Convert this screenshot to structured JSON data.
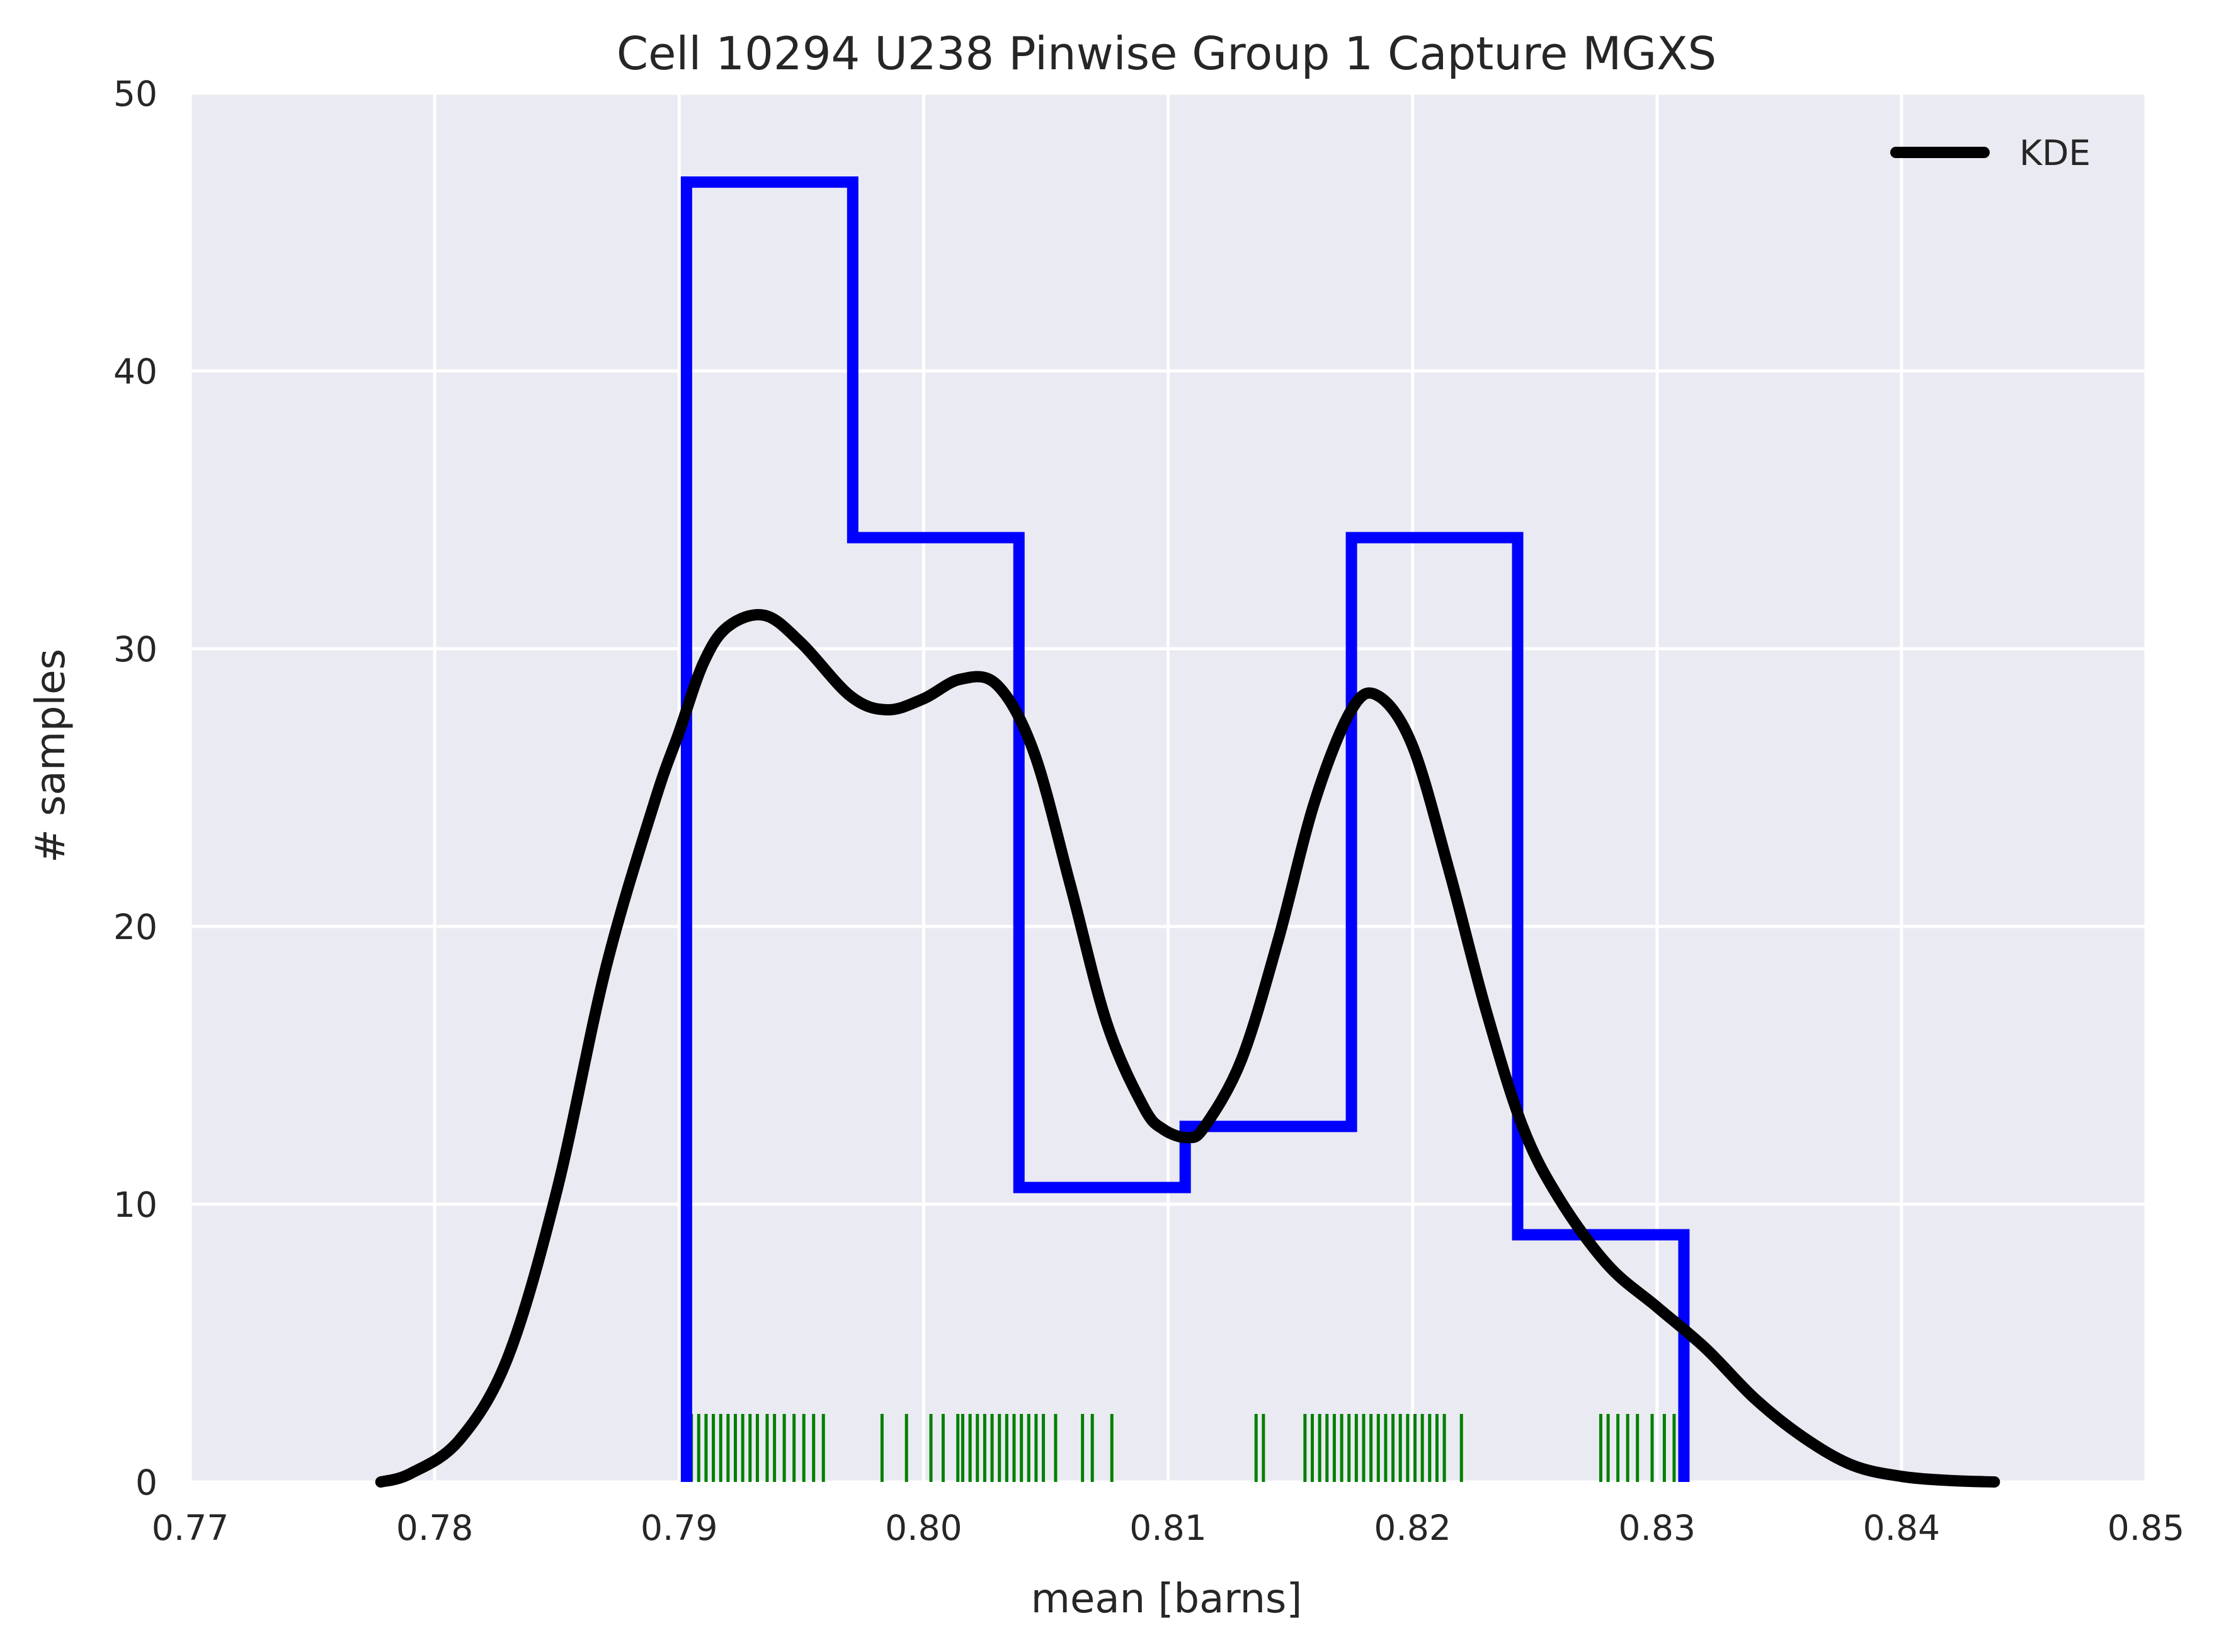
{
  "chart_data": {
    "type": "histogram",
    "title": "Cell 10294 U238 Pinwise Group 1 Capture MGXS",
    "xlabel": "mean [barns]",
    "ylabel": "# samples",
    "xlim": [
      0.77,
      0.85
    ],
    "ylim": [
      0,
      50
    ],
    "xticks": [
      "0.77",
      "0.78",
      "0.79",
      "0.80",
      "0.81",
      "0.82",
      "0.83",
      "0.84",
      "0.85"
    ],
    "yticks": [
      "0",
      "10",
      "20",
      "30",
      "40",
      "50"
    ],
    "grid": true,
    "legend": {
      "placement": "top-right",
      "entries": [
        "KDE"
      ]
    },
    "colors": {
      "histogram": "#0000ff",
      "kde": "#000000",
      "rug": "#008000",
      "background": "#eaeaf2",
      "grid": "#ffffff"
    },
    "histogram": {
      "bin_edges": [
        0.7903,
        0.7971,
        0.8039,
        0.8107,
        0.8175,
        0.8243,
        0.8311
      ],
      "values": [
        46.8,
        34.0,
        10.6,
        12.8,
        34.0,
        8.9
      ]
    },
    "kde": {
      "name": "KDE",
      "x": [
        0.7778,
        0.779,
        0.781,
        0.783,
        0.785,
        0.787,
        0.789,
        0.79,
        0.791,
        0.792,
        0.7935,
        0.795,
        0.797,
        0.7985,
        0.8,
        0.8015,
        0.803,
        0.8045,
        0.806,
        0.8075,
        0.809,
        0.8098,
        0.8108,
        0.8115,
        0.813,
        0.8145,
        0.816,
        0.8175,
        0.8186,
        0.82,
        0.8215,
        0.823,
        0.8245,
        0.826,
        0.828,
        0.83,
        0.832,
        0.834,
        0.836,
        0.838,
        0.84,
        0.842,
        0.8438
      ],
      "y": [
        0.0,
        0.3,
        1.5,
        4.5,
        10.5,
        18.5,
        24.5,
        27.0,
        29.5,
        30.8,
        31.2,
        30.2,
        28.3,
        27.8,
        28.2,
        28.9,
        28.7,
        26.3,
        21.5,
        16.5,
        13.5,
        12.7,
        12.4,
        12.8,
        15.2,
        19.5,
        24.5,
        27.8,
        28.3,
        26.5,
        22.0,
        17.0,
        12.8,
        10.2,
        7.8,
        6.3,
        4.8,
        3.0,
        1.6,
        0.6,
        0.2,
        0.05,
        0.0
      ]
    },
    "rug": {
      "x": [
        0.7902,
        0.7905,
        0.7908,
        0.7911,
        0.7914,
        0.7917,
        0.792,
        0.7923,
        0.7926,
        0.7929,
        0.7932,
        0.7936,
        0.7939,
        0.7943,
        0.7947,
        0.7951,
        0.7955,
        0.7959,
        0.7983,
        0.7993,
        0.8003,
        0.8008,
        0.8014,
        0.8016,
        0.8019,
        0.8022,
        0.8025,
        0.8028,
        0.8031,
        0.8034,
        0.8037,
        0.804,
        0.8043,
        0.8046,
        0.8049,
        0.8054,
        0.8065,
        0.8069,
        0.8077,
        0.8136,
        0.8139,
        0.8156,
        0.8159,
        0.8162,
        0.8165,
        0.8168,
        0.8171,
        0.8174,
        0.8177,
        0.818,
        0.8183,
        0.8186,
        0.8189,
        0.8192,
        0.8195,
        0.8198,
        0.8201,
        0.8204,
        0.8207,
        0.821,
        0.8213,
        0.822,
        0.8277,
        0.828,
        0.8284,
        0.8288,
        0.8292,
        0.8298,
        0.8303,
        0.8307,
        0.8311
      ]
    }
  }
}
